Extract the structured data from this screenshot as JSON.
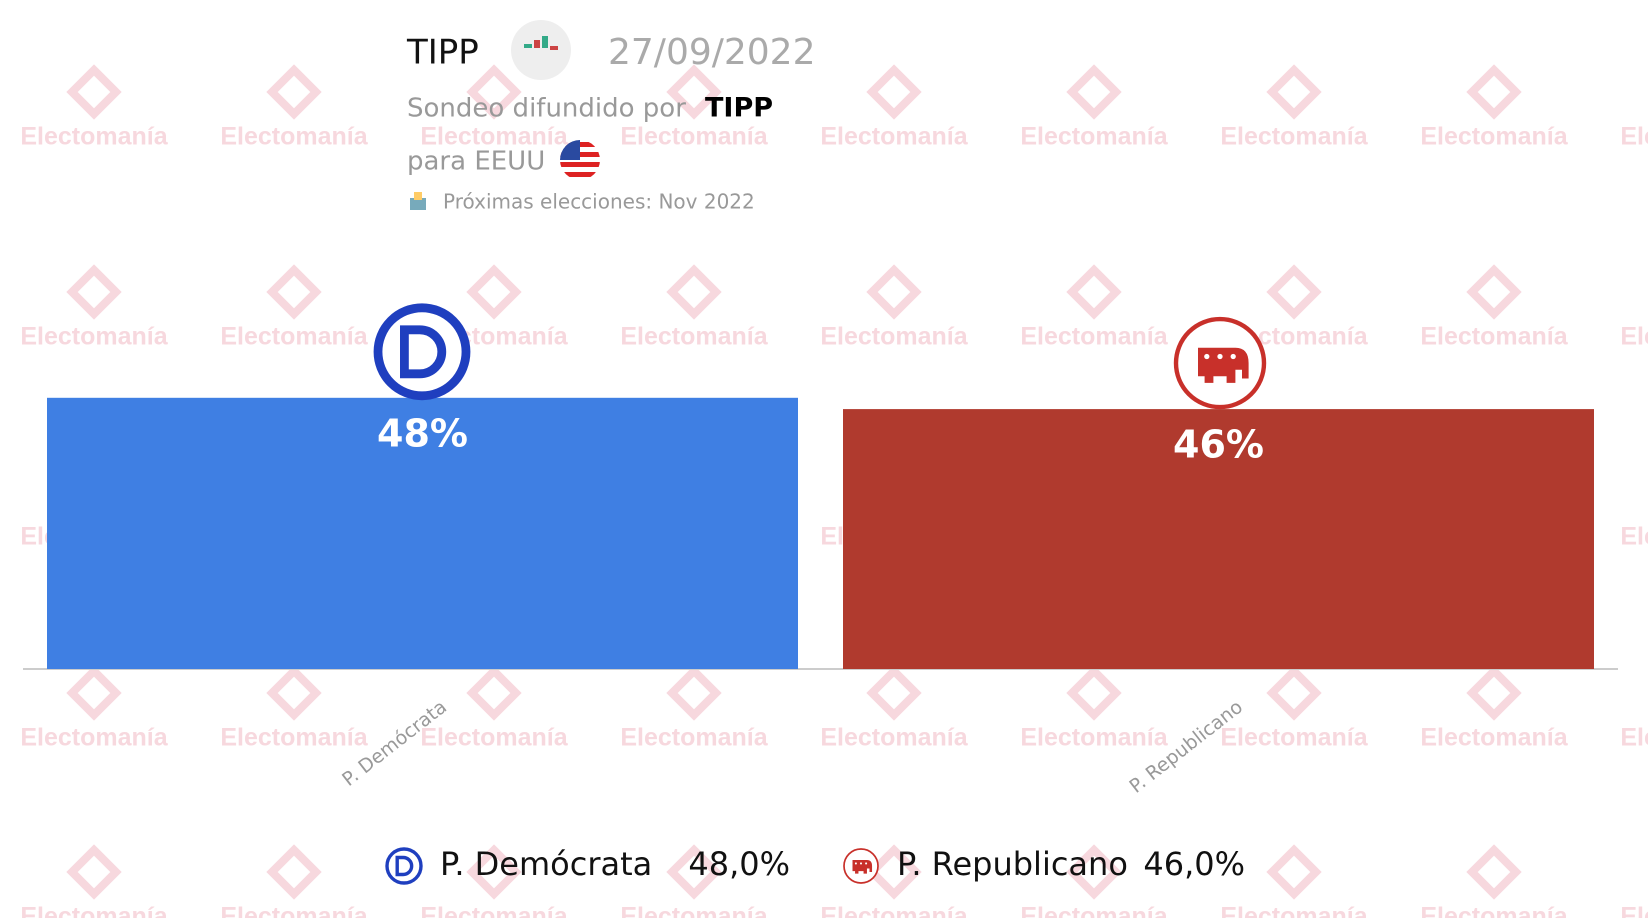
{
  "header": {
    "pollster": "TIPP",
    "date": "27/09/2022",
    "published_by": "Sondeo difundido por",
    "published_by_name": "TIPP",
    "region": "para EEUU",
    "next_election": "Próximas elecciones: Nov 2022"
  },
  "watermark": "Electomanía",
  "chart_data": {
    "type": "bar",
    "categories": [
      "P. Demócrata",
      "P. Republicano"
    ],
    "values": [
      48,
      46
    ],
    "value_labels": [
      "48%",
      "46%"
    ],
    "legend_value_labels": [
      "48,0%",
      "46,0%"
    ],
    "colors": [
      "#3f7fe3",
      "#b03a2e"
    ],
    "ylim": [
      0,
      60
    ]
  }
}
